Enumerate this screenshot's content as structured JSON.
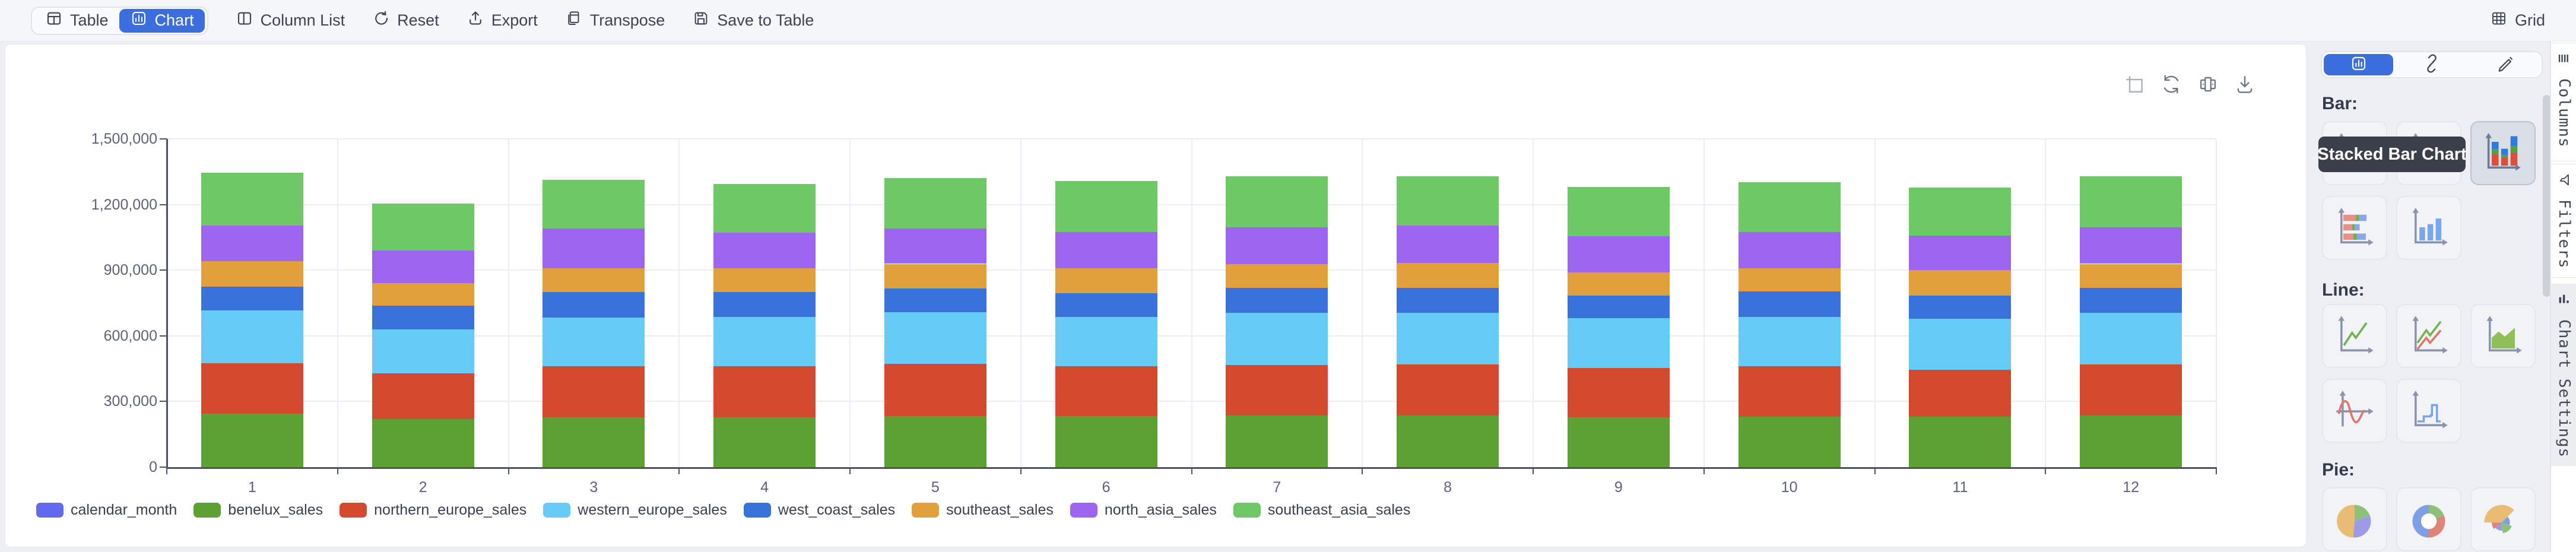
{
  "toolbar": {
    "table_label": "Table",
    "chart_label": "Chart",
    "column_list_label": "Column List",
    "reset_label": "Reset",
    "export_label": "Export",
    "transpose_label": "Transpose",
    "save_to_table_label": "Save to Table",
    "grid_label": "Grid"
  },
  "panel": {
    "bar_section_label": "Bar:",
    "line_section_label": "Line:",
    "pie_section_label": "Pie:",
    "tooltip_text": "Stacked Bar Chart"
  },
  "side_tabs": [
    {
      "label": "Columns"
    },
    {
      "label": "Filters"
    },
    {
      "label": "Chart Settings"
    }
  ],
  "chart_data": {
    "type": "bar",
    "stacked": true,
    "title": "",
    "xlabel": "",
    "ylabel": "",
    "grid": true,
    "legend_position": "bottom",
    "ylim": [
      0,
      1500000
    ],
    "y_ticks": [
      "0",
      "300,000",
      "600,000",
      "900,000",
      "1,200,000",
      "1,500,000"
    ],
    "categories": [
      "1",
      "2",
      "3",
      "4",
      "5",
      "6",
      "7",
      "8",
      "9",
      "10",
      "11",
      "12"
    ],
    "x_field": {
      "name": "calendar_month",
      "color": "#6569ee"
    },
    "series": [
      {
        "name": "benelux_sales",
        "color": "#5ba233",
        "values": [
          245000,
          220000,
          227000,
          227000,
          233000,
          234000,
          236000,
          236000,
          227000,
          230000,
          230000,
          236000
        ]
      },
      {
        "name": "northern_europe_sales",
        "color": "#d5492f",
        "values": [
          230000,
          208000,
          234000,
          233000,
          238000,
          227000,
          231000,
          234000,
          225000,
          232000,
          215000,
          234000
        ]
      },
      {
        "name": "western_europe_sales",
        "color": "#66ccf7",
        "values": [
          240000,
          202000,
          223000,
          227000,
          238000,
          225000,
          238000,
          235000,
          228000,
          225000,
          234000,
          235000
        ]
      },
      {
        "name": "west_coast_sales",
        "color": "#3a72db",
        "values": [
          110000,
          108000,
          117000,
          113000,
          108000,
          110000,
          113000,
          115000,
          105000,
          117000,
          105000,
          113000
        ]
      },
      {
        "name": "southeast_sales",
        "color": "#e2a03a",
        "values": [
          115000,
          103000,
          108000,
          108000,
          112000,
          114000,
          109000,
          112000,
          105000,
          104000,
          117000,
          111000
        ]
      },
      {
        "name": "north_asia_sales",
        "color": "#9c66f0",
        "values": [
          165000,
          149000,
          181000,
          163000,
          161000,
          164000,
          168000,
          173000,
          166000,
          166000,
          156000,
          166000
        ]
      },
      {
        "name": "southeast_asia_sales",
        "color": "#6cc963",
        "values": [
          240000,
          213000,
          223000,
          222000,
          230000,
          233000,
          233000,
          225000,
          225000,
          229000,
          220000,
          233000
        ]
      }
    ]
  }
}
